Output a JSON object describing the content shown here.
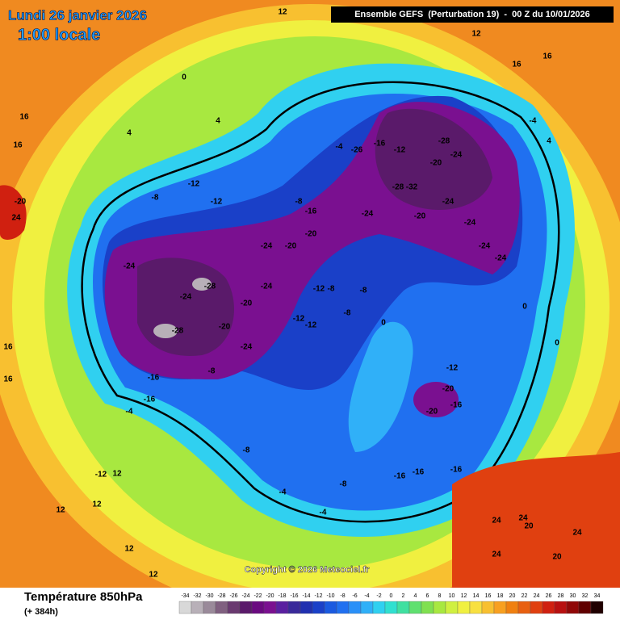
{
  "header": {
    "date": "Lundi 26 janvier 2026",
    "time": "1:00 locale",
    "model": "Ensemble GEFS  (Perturbation 19)  -  00 Z du 10/01/2026"
  },
  "footer": {
    "title": "Température 850hPa",
    "lead": "(+ 384h)",
    "copyright": "Copyright © 2026 Meteociel.fr"
  },
  "scale": {
    "labels": [
      -34,
      -32,
      -30,
      -28,
      -26,
      -24,
      -22,
      -20,
      -18,
      -16,
      -14,
      -12,
      -10,
      -8,
      -6,
      -4,
      -2,
      0,
      2,
      4,
      6,
      8,
      10,
      12,
      14,
      16,
      18,
      20,
      22,
      24,
      26,
      28,
      30,
      32,
      34
    ],
    "colors": [
      "#d8d8d8",
      "#b8b0b8",
      "#9a8a9a",
      "#806080",
      "#6a3a70",
      "#5a1a6a",
      "#6a0a80",
      "#7a1090",
      "#5a20a0",
      "#3a2a9a",
      "#2030b0",
      "#1a40c8",
      "#1a5ae0",
      "#2070f0",
      "#2a90f8",
      "#30b0f8",
      "#30d0f0",
      "#30e0d0",
      "#40e0a0",
      "#60e070",
      "#80e050",
      "#a8e840",
      "#d0f040",
      "#f0f040",
      "#f8e040",
      "#f8c030",
      "#f8a020",
      "#f08010",
      "#e86010",
      "#e04010",
      "#d02010",
      "#b81010",
      "#900808",
      "#600000",
      "#200000"
    ]
  },
  "map_labels": [
    -24,
    -28,
    -24,
    -28,
    -24,
    -20,
    -20,
    -24,
    -24,
    -20,
    -20,
    -16,
    -8,
    -16,
    -16,
    -4,
    -8,
    -12,
    -12,
    -12,
    -8,
    -8,
    -8,
    0,
    -28,
    -24,
    -20,
    -32,
    -28,
    -24,
    -24,
    -20,
    -24,
    -24,
    -24,
    -20,
    -16,
    -20,
    -12,
    -16,
    -16,
    -16,
    -8,
    -8,
    -4,
    -4,
    -12,
    12,
    12,
    12,
    12,
    12,
    16,
    16,
    16,
    16,
    16,
    16,
    4,
    0,
    0,
    -20,
    24,
    24,
    24,
    24,
    24,
    20,
    20,
    12,
    12,
    -4,
    0,
    4,
    4,
    -12,
    -12,
    -8,
    -4,
    -26,
    -16,
    -12
  ]
}
